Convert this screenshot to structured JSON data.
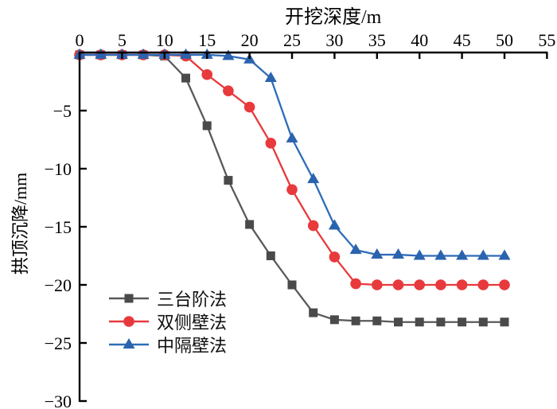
{
  "chart_data": {
    "type": "line",
    "title": "",
    "xlabel": "开挖深度/m",
    "ylabel": "拱顶沉降/mm",
    "xlim": [
      0,
      55
    ],
    "ylim": [
      -30,
      0
    ],
    "grid": false,
    "legend_position": "inside-lower-left",
    "x_ticks": [
      0,
      5,
      10,
      15,
      20,
      25,
      30,
      35,
      40,
      45,
      50,
      55
    ],
    "x_tick_labels": [
      "0",
      "5",
      "10",
      "15",
      "20",
      "25",
      "30",
      "35",
      "40",
      "45",
      "50",
      "55"
    ],
    "y_ticks": [
      -5,
      -10,
      -15,
      -20,
      -25,
      -30
    ],
    "y_tick_labels": [
      "−5",
      "−10",
      "−15",
      "−20",
      "−25",
      "−30"
    ],
    "x": [
      0,
      2.5,
      5,
      7.5,
      10,
      12.5,
      15,
      17.5,
      20,
      22.5,
      25,
      27.5,
      30,
      32.5,
      35,
      37.5,
      40,
      42.5,
      45,
      47.5,
      50
    ],
    "series": [
      {
        "name": "三台阶法",
        "id": "three-bench-method",
        "marker": "square",
        "line_color": "#595959",
        "marker_color": "#4a4a4a",
        "values": [
          -0.2,
          -0.2,
          -0.2,
          -0.2,
          -0.3,
          -2.2,
          -6.3,
          -11.0,
          -14.8,
          -17.5,
          -20.0,
          -22.4,
          -23.0,
          -23.1,
          -23.1,
          -23.2,
          -23.2,
          -23.2,
          -23.2,
          -23.2,
          -23.2
        ]
      },
      {
        "name": "双侧壁法",
        "id": "double-side-wall-method",
        "marker": "circle",
        "line_color": "#e8393c",
        "marker_color": "#e8393c",
        "values": [
          -0.2,
          -0.2,
          -0.2,
          -0.2,
          -0.2,
          -0.3,
          -1.9,
          -3.3,
          -4.7,
          -7.8,
          -11.8,
          -14.9,
          -17.6,
          -19.9,
          -20.0,
          -20.0,
          -20.0,
          -20.0,
          -20.0,
          -20.0,
          -20.0
        ]
      },
      {
        "name": "中隔壁法",
        "id": "center-diaphragm-method",
        "marker": "triangle-up",
        "line_color": "#2e6cb8",
        "marker_color": "#2b63ae",
        "values": [
          -0.2,
          -0.2,
          -0.2,
          -0.2,
          -0.2,
          -0.2,
          -0.2,
          -0.3,
          -0.6,
          -2.2,
          -7.4,
          -10.9,
          -14.9,
          -17.0,
          -17.4,
          -17.4,
          -17.5,
          -17.5,
          -17.5,
          -17.5,
          -17.5
        ]
      }
    ]
  }
}
